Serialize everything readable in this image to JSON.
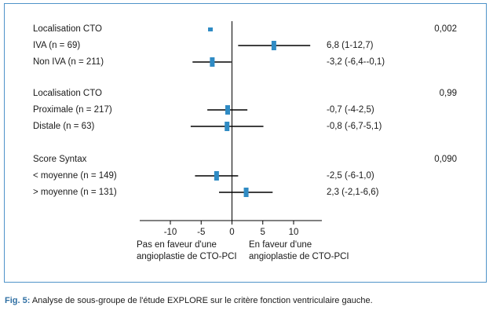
{
  "colors": {
    "frame": "#4f93c9",
    "marker": "#2f8bc4",
    "line": "#000000",
    "caption_label": "#2f6fa3"
  },
  "chart_data": {
    "type": "forest",
    "xlim": [
      -15,
      15
    ],
    "xticks": [
      -10,
      -5,
      0,
      5,
      10
    ],
    "tick_labels": [
      "-10",
      "-5",
      "0",
      "5",
      "10"
    ],
    "groups": [
      {
        "header": "Localisation CTO",
        "header_point": -3.5,
        "p_value": "0,002",
        "rows": [
          {
            "label": "IVA (n = 69)",
            "estimate": 6.8,
            "lower": 1,
            "upper": 12.7,
            "ci_text": "6,8 (1-12,7)"
          },
          {
            "label": "Non IVA (n = 211)",
            "estimate": -3.2,
            "lower": -6.4,
            "upper": -0.1,
            "ci_text": "-3,2 (-6,4--0,1)"
          }
        ]
      },
      {
        "header": "Localisation CTO",
        "p_value": "0,99",
        "rows": [
          {
            "label": "Proximale (n = 217)",
            "estimate": -0.7,
            "lower": -4,
            "upper": 2.5,
            "ci_text": "-0,7 (-4-2,5)"
          },
          {
            "label": "Distale (n = 63)",
            "estimate": -0.8,
            "lower": -6.7,
            "upper": 5.1,
            "ci_text": "-0,8 (-6,7-5,1)"
          }
        ]
      },
      {
        "header": "Score Syntax",
        "p_value": "0,090",
        "rows": [
          {
            "label": "< moyenne (n = 149)",
            "estimate": -2.5,
            "lower": -6,
            "upper": 1.0,
            "ci_text": "-2,5 (-6-1,0)"
          },
          {
            "label": "> moyenne (n = 131)",
            "estimate": 2.3,
            "lower": -2.1,
            "upper": 6.6,
            "ci_text": "2,3 (-2,1-6,6)"
          }
        ]
      }
    ],
    "favor_left": [
      "Pas en faveur d'une",
      "angioplastie de CTO-PCI"
    ],
    "favor_right": [
      "En faveur d'une",
      "angioplastie de CTO-PCI"
    ]
  },
  "caption": {
    "label": "Fig. 5:",
    "text": " Analyse de sous-groupe de l'étude EXPLORE sur le critère fonction ventriculaire gauche."
  }
}
